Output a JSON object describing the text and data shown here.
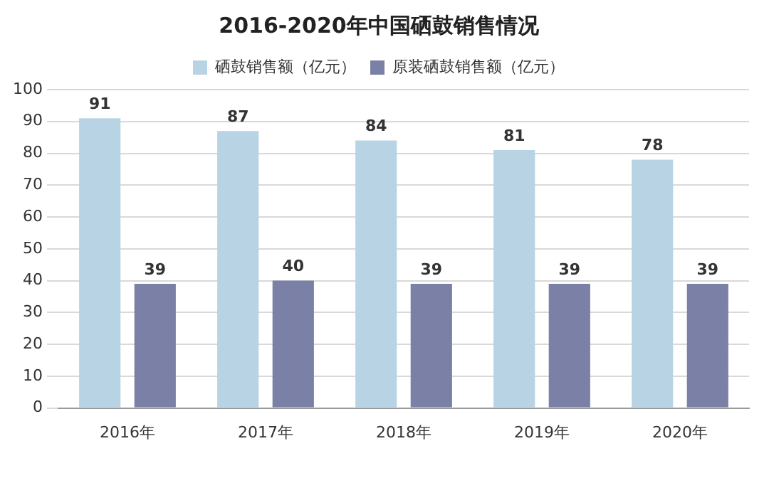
{
  "chart_data": {
    "type": "bar",
    "title": "2016-2020年中国硒鼓销售情况",
    "categories": [
      "2016年",
      "2017年",
      "2018年",
      "2019年",
      "2020年"
    ],
    "series": [
      {
        "name": "硒鼓销售额（亿元）",
        "color": "#b8d4e4",
        "values": [
          91,
          87,
          84,
          81,
          78
        ]
      },
      {
        "name": "原装硒鼓销售额（亿元）",
        "color": "#7b80a6",
        "values": [
          39,
          40,
          39,
          39,
          39
        ]
      }
    ],
    "ylim": [
      0,
      100
    ],
    "yticks": [
      0,
      10,
      20,
      30,
      40,
      50,
      60,
      70,
      80,
      90,
      100
    ],
    "grid": "y",
    "legend": "top",
    "data_labels": true
  }
}
